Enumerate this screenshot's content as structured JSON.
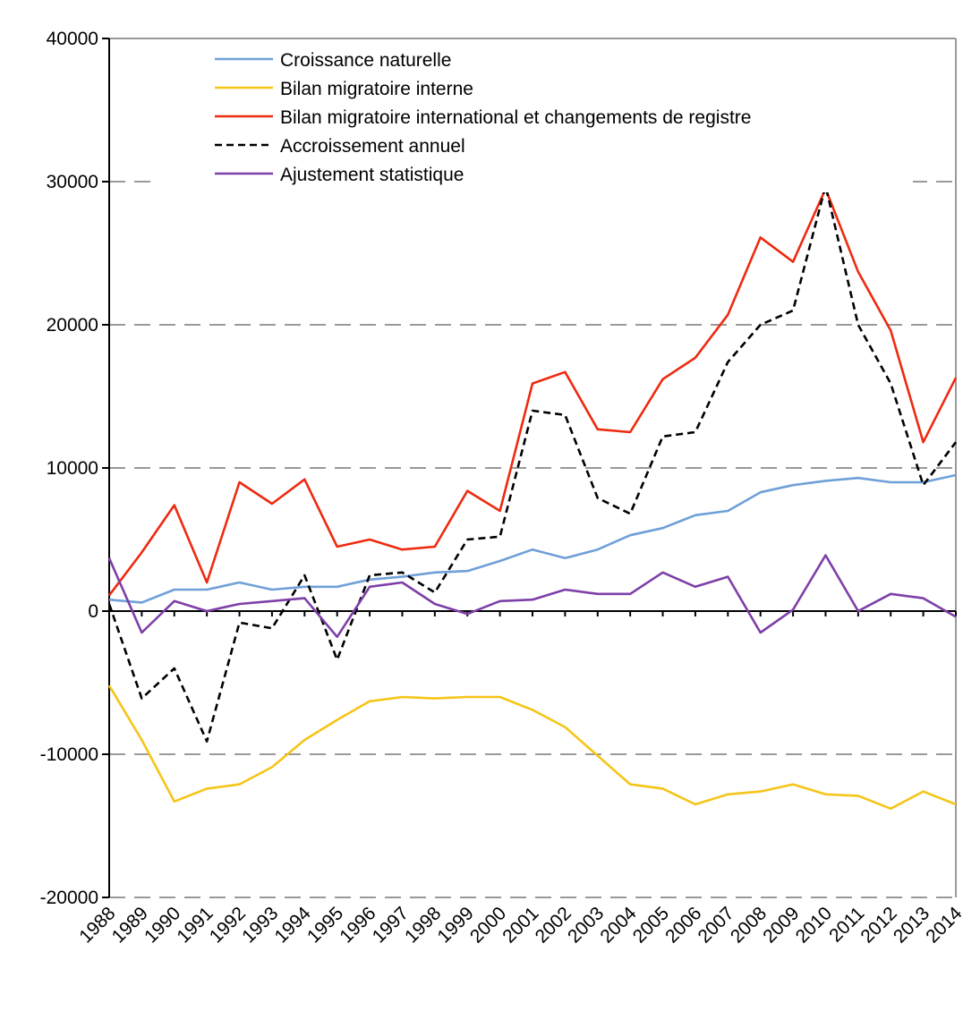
{
  "chart_data": {
    "type": "line",
    "categories": [
      "1988",
      "1989",
      "1990",
      "1991",
      "1992",
      "1993",
      "1994",
      "1995",
      "1996",
      "1997",
      "1998",
      "1999",
      "2000",
      "2001",
      "2002",
      "2003",
      "2004",
      "2005",
      "2006",
      "2007",
      "2008",
      "2009",
      "2010",
      "2011",
      "2012",
      "2013",
      "2014"
    ],
    "series": [
      {
        "name": "Croissance naturelle",
        "color": "#6fa0d8",
        "style": "solid",
        "values": [
          800,
          600,
          1500,
          1500,
          2000,
          1500,
          1700,
          1700,
          2200,
          2400,
          2700,
          2800,
          3500,
          4300,
          3700,
          4300,
          5300,
          5800,
          6700,
          7000,
          8300,
          8800,
          9100,
          9300,
          9000,
          9000,
          9500
        ]
      },
      {
        "name": "Bilan migratoire interne",
        "color": "#f5c518",
        "style": "solid",
        "values": [
          -5200,
          -9000,
          -13300,
          -12400,
          -12100,
          -10900,
          -9000,
          -7600,
          -6300,
          -6000,
          -6100,
          -6000,
          -6000,
          -6900,
          -8100,
          -10100,
          -12100,
          -12400,
          -13500,
          -12800,
          -12600,
          -12100,
          -12800,
          -12900,
          -13800,
          -12600,
          -13500
        ]
      },
      {
        "name": "Bilan migratoire international et changements de registre",
        "color": "#ee2a10",
        "style": "solid",
        "values": [
          1100,
          4100,
          7400,
          2000,
          9000,
          7500,
          9200,
          4500,
          5000,
          4300,
          4500,
          8400,
          7000,
          15900,
          16700,
          12700,
          12500,
          16200,
          17700,
          20700,
          26100,
          24400,
          29500,
          23700,
          19600,
          11800,
          16300
        ]
      },
      {
        "name": "Accroissement annuel",
        "color": "#000000",
        "style": "dashed",
        "values": [
          500,
          -6100,
          -4000,
          -9100,
          -800,
          -1200,
          2500,
          -3400,
          2500,
          2700,
          1300,
          5000,
          5200,
          14000,
          13700,
          7900,
          6800,
          12200,
          12500,
          17400,
          20000,
          21000,
          29700,
          20000,
          15900,
          8800,
          11800
        ]
      },
      {
        "name": "Ajustement statistique",
        "color": "#7d3fa8",
        "style": "solid",
        "values": [
          3700,
          -1500,
          700,
          0,
          500,
          700,
          900,
          -1800,
          1700,
          2000,
          500,
          -200,
          700,
          800,
          1500,
          1200,
          1200,
          2700,
          1700,
          2400,
          -1500,
          100,
          3900,
          0,
          1200,
          900,
          -400
        ]
      }
    ],
    "ylim": [
      -20000,
      40000
    ],
    "yticks": [
      -20000,
      -10000,
      0,
      10000,
      20000,
      30000,
      40000
    ],
    "grid": true,
    "legend": "upper left"
  }
}
